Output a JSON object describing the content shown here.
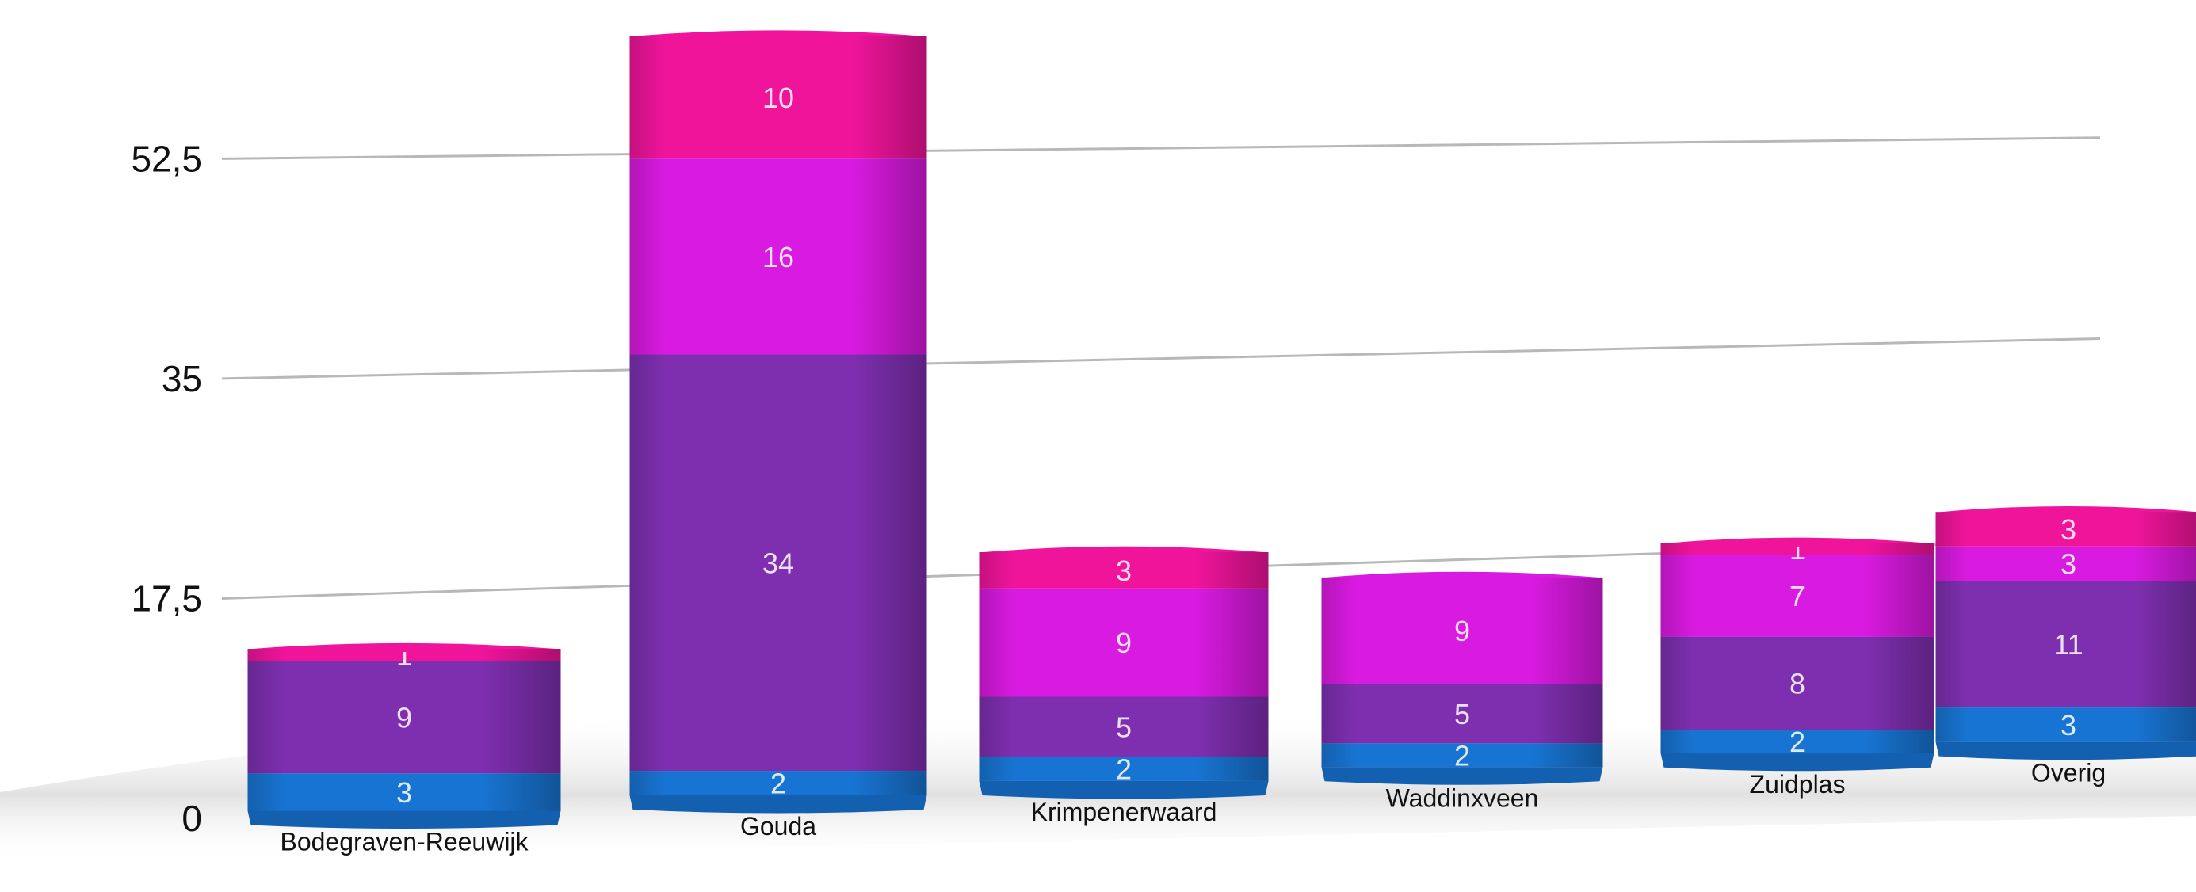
{
  "chart_data": {
    "type": "bar",
    "stacked": true,
    "title": "",
    "xlabel": "",
    "ylabel": "",
    "categories": [
      "Bodegraven-Reeuwijk",
      "Gouda",
      "Krimpenerwaard",
      "Waddinxveen",
      "Zuidplas",
      "Overig"
    ],
    "series": [
      {
        "color": "#1874D2",
        "values": [
          3,
          2,
          2,
          2,
          2,
          3
        ]
      },
      {
        "color": "#7E2FB0",
        "values": [
          9,
          34,
          5,
          5,
          8,
          11
        ]
      },
      {
        "color": "#D91AE0",
        "values": [
          0,
          16,
          9,
          9,
          7,
          3
        ]
      },
      {
        "color": "#F0149B",
        "values": [
          1,
          10,
          3,
          0,
          1,
          3
        ]
      }
    ],
    "yticks": [
      "0",
      "17,5",
      "35",
      "52,5"
    ],
    "ylim": [
      0,
      70
    ],
    "grid": true,
    "legend": "none"
  }
}
